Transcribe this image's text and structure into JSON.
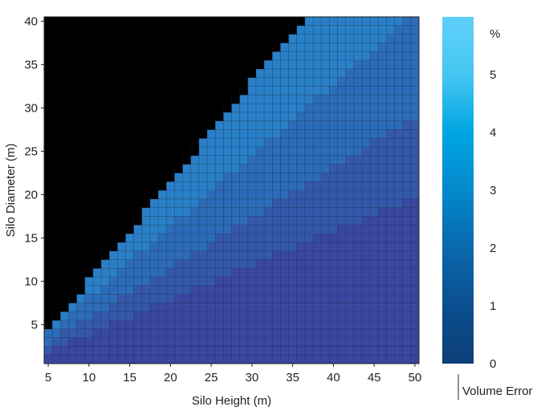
{
  "chart_data": {
    "type": "heatmap",
    "title": "",
    "xlabel": "Silo Height (m)",
    "ylabel": "Silo Diameter (m)",
    "xlim": [
      5,
      50
    ],
    "ylim": [
      1,
      40
    ],
    "x_ticks": [
      5,
      10,
      15,
      20,
      25,
      30,
      35,
      40,
      45,
      50
    ],
    "y_ticks": [
      5,
      10,
      15,
      20,
      25,
      30,
      35,
      40
    ],
    "grid_step": 1,
    "invalid_region": "black cells where Silo Diameter (m) > 1.15 × (Silo Height (m) − 1.3)",
    "value_model": "Volume Error (%) ≈ 6 × Silo Diameter / (Silo Diameter + Silo Height), plotted in discrete bands",
    "bands": [
      {
        "min": 4.4,
        "max": 5.2,
        "color": "#5ec2d2"
      },
      {
        "min": 3.7,
        "max": 4.4,
        "color": "#3aa7e0"
      },
      {
        "min": 3.2,
        "max": 3.7,
        "color": "#2a93d8"
      },
      {
        "min": 2.7,
        "max": 3.2,
        "color": "#2a80c8"
      },
      {
        "min": 2.2,
        "max": 2.7,
        "color": "#2d6cb8"
      },
      {
        "min": 1.7,
        "max": 2.2,
        "color": "#3558ab"
      },
      {
        "min": 0,
        "max": 1.7,
        "color": "#3a479e"
      }
    ],
    "colorbar": {
      "label": "Volume Error",
      "unit": "%",
      "ticks": [
        0,
        1,
        2,
        3,
        4,
        5
      ],
      "range": [
        0,
        6
      ],
      "stops": [
        {
          "value": 0,
          "color": "#0c3f77"
        },
        {
          "value": 1,
          "color": "#0a4e8f"
        },
        {
          "value": 2,
          "color": "#0968ac"
        },
        {
          "value": 3,
          "color": "#0388cb"
        },
        {
          "value": 4,
          "color": "#00a6e2"
        },
        {
          "value": 5,
          "color": "#45c6f2"
        },
        {
          "value": 6,
          "color": "#5fd0fa"
        }
      ]
    },
    "colors": {
      "invalid": "#000000",
      "gridline": "#1a2a45",
      "axis": "#222222"
    }
  }
}
